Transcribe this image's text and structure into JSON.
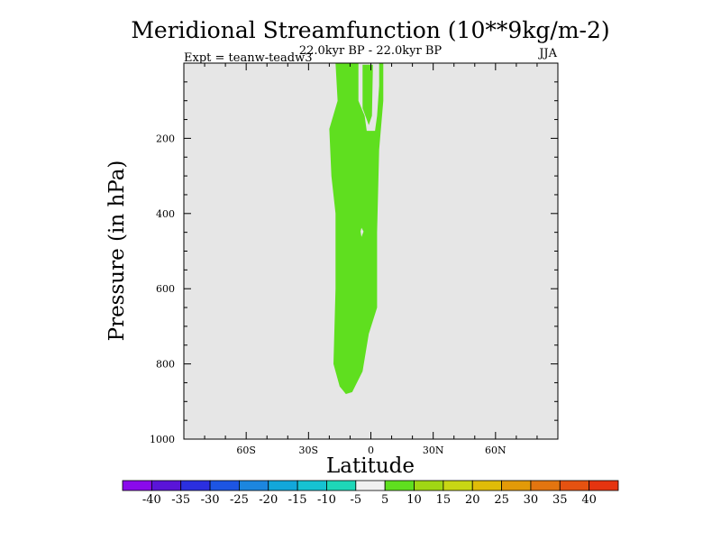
{
  "chart_data": {
    "type": "heatmap",
    "title": "Meridional Streamfunction (10**9kg/m-2)",
    "subtitle": "22.0kyr BP - 22.0kyr BP",
    "left_label": "Expt = teanw-teadw3",
    "right_label": "JJA",
    "xlabel": "Latitude",
    "ylabel": "Pressure (in hPa)",
    "xlim": [
      -90,
      90
    ],
    "ylim": [
      0,
      1000
    ],
    "x_tick_values": [
      -60,
      -30,
      0,
      30,
      60
    ],
    "x_tick_labels": [
      "60S",
      "30S",
      "0",
      "30N",
      "60N"
    ],
    "y_tick_values": [
      200,
      400,
      600,
      800,
      1000
    ],
    "y_tick_labels": [
      "200",
      "400",
      "600",
      "800",
      "1000"
    ],
    "background_color": "#e6e6e6",
    "filled_regions": [
      {
        "level": "5 to 10",
        "color": "#5fdf1f",
        "outline": [
          [
            -17,
            0
          ],
          [
            -6,
            0
          ],
          [
            -6,
            100
          ],
          [
            -3,
            140
          ],
          [
            -2,
            180
          ],
          [
            2,
            180
          ],
          [
            3,
            140
          ],
          [
            4,
            60
          ],
          [
            4,
            0
          ],
          [
            6,
            0
          ],
          [
            6,
            100
          ],
          [
            4,
            230
          ],
          [
            3,
            450
          ],
          [
            3,
            650
          ],
          [
            -1,
            720
          ],
          [
            -4,
            820
          ],
          [
            -9,
            875
          ],
          [
            -12,
            880
          ],
          [
            -15,
            860
          ],
          [
            -18,
            800
          ],
          [
            -17,
            600
          ],
          [
            -17,
            400
          ],
          [
            -19,
            300
          ],
          [
            -20,
            175
          ],
          [
            -16,
            100
          ]
        ],
        "holes": [
          [
            [
              -4,
              4
            ],
            [
              -4,
              120
            ],
            [
              -1,
              165
            ],
            [
              0.5,
              140
            ],
            [
              1,
              4
            ]
          ],
          [
            [
              -5,
              448
            ],
            [
              -4.5,
              462
            ],
            [
              -3.5,
              448
            ],
            [
              -4.5,
              438
            ]
          ]
        ]
      }
    ],
    "colorbar": {
      "labels": [
        "-40",
        "-35",
        "-30",
        "-25",
        "-20",
        "-15",
        "-10",
        "-5",
        "5",
        "10",
        "15",
        "20",
        "25",
        "30",
        "35",
        "40"
      ],
      "colors": [
        "#8a0aeb",
        "#5a14d8",
        "#2b2fe0",
        "#1d55e3",
        "#1c86df",
        "#12a7da",
        "#16c2d2",
        "#1ed7b8",
        "#f0f0f0",
        "#5fdf1f",
        "#a0d714",
        "#c8d714",
        "#e0bc08",
        "#e29a08",
        "#e37510",
        "#e55211",
        "#e53410"
      ]
    }
  }
}
